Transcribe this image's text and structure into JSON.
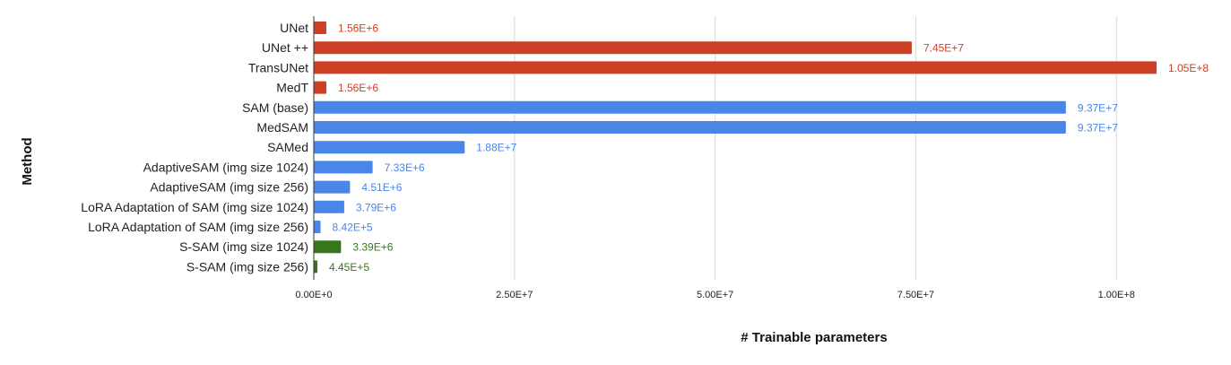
{
  "chart_data": {
    "type": "bar",
    "orientation": "horizontal",
    "title": "",
    "xlabel": "# Trainable parameters",
    "ylabel": "Method",
    "xlim": [
      0,
      105000000
    ],
    "grid": true,
    "legend": "none",
    "xticks": [
      {
        "value": 0,
        "label": "0.00E+0"
      },
      {
        "value": 25000000,
        "label": "2.50E+7"
      },
      {
        "value": 50000000,
        "label": "5.00E+7"
      },
      {
        "value": 75000000,
        "label": "7.50E+7"
      },
      {
        "value": 100000000,
        "label": "1.00E+8"
      }
    ],
    "bars": [
      {
        "category": "UNet",
        "value": 1560000,
        "label": "1.56E+6",
        "color": "#cc4125"
      },
      {
        "category": "UNet ++",
        "value": 74500000,
        "label": "7.45E+7",
        "color": "#cc4125"
      },
      {
        "category": "TransUNet",
        "value": 105000000,
        "label": "1.05E+8",
        "color": "#cc4125"
      },
      {
        "category": "MedT",
        "value": 1560000,
        "label": "1.56E+6",
        "color": "#cc4125"
      },
      {
        "category": "SAM (base)",
        "value": 93700000,
        "label": "9.37E+7",
        "color": "#4a86e8"
      },
      {
        "category": "MedSAM",
        "value": 93700000,
        "label": "9.37E+7",
        "color": "#4a86e8"
      },
      {
        "category": "SAMed",
        "value": 18800000,
        "label": "1.88E+7",
        "color": "#4a86e8"
      },
      {
        "category": "AdaptiveSAM (img size 1024)",
        "value": 7330000,
        "label": "7.33E+6",
        "color": "#4a86e8"
      },
      {
        "category": "AdaptiveSAM (img size 256)",
        "value": 4510000,
        "label": "4.51E+6",
        "color": "#4a86e8"
      },
      {
        "category": "LoRA Adaptation of SAM (img size 1024)",
        "value": 3790000,
        "label": "3.79E+6",
        "color": "#4a86e8"
      },
      {
        "category": "LoRA Adaptation of SAM (img size 256)",
        "value": 842000,
        "label": "8.42E+5",
        "color": "#4a86e8"
      },
      {
        "category": "S-SAM (img size 1024)",
        "value": 3390000,
        "label": "3.39E+6",
        "color": "#38761d"
      },
      {
        "category": "S-SAM (img size 256)",
        "value": 445000,
        "label": "4.45E+5",
        "color": "#38761d"
      }
    ]
  }
}
